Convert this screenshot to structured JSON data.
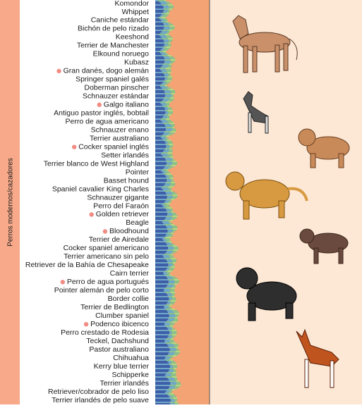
{
  "section_label": "Perros modernos/cazadores",
  "breeds": [
    {
      "name": "Komondor",
      "marked": false
    },
    {
      "name": "Whippet",
      "marked": false
    },
    {
      "name": "Caniche estándar",
      "marked": false
    },
    {
      "name": "Bichón de pelo rizado",
      "marked": false
    },
    {
      "name": "Keeshond",
      "marked": false
    },
    {
      "name": "Terrier de Manchester",
      "marked": false
    },
    {
      "name": "Elkound noruego",
      "marked": false
    },
    {
      "name": "Kubasz",
      "marked": false
    },
    {
      "name": "Gran danés, dogo alemán",
      "marked": true
    },
    {
      "name": "Springer spaniel galés",
      "marked": false
    },
    {
      "name": "Doberman pinscher",
      "marked": false
    },
    {
      "name": "Schnauzer estándar",
      "marked": false
    },
    {
      "name": "Galgo italiano",
      "marked": true
    },
    {
      "name": "Antiguo pastor inglés, bobtail",
      "marked": false
    },
    {
      "name": "Perro de agua americano",
      "marked": false
    },
    {
      "name": "Schnauzer enano",
      "marked": false
    },
    {
      "name": "Terrier australiano",
      "marked": false
    },
    {
      "name": "Cocker spaniel inglés",
      "marked": true
    },
    {
      "name": "Setter irlandés",
      "marked": false
    },
    {
      "name": "Terrier blanco de West Highland",
      "marked": false
    },
    {
      "name": "Pointer",
      "marked": false
    },
    {
      "name": "Basset hound",
      "marked": false
    },
    {
      "name": "Spaniel cavalier King Charles",
      "marked": false
    },
    {
      "name": "Schnauzer gigante",
      "marked": false
    },
    {
      "name": "Perro del Faraón",
      "marked": false
    },
    {
      "name": "Golden retriever",
      "marked": true
    },
    {
      "name": "Beagle",
      "marked": false
    },
    {
      "name": "Bloodhound",
      "marked": true
    },
    {
      "name": "Terrier de Airedale",
      "marked": false
    },
    {
      "name": "Cocker spaniel americano",
      "marked": false
    },
    {
      "name": "Terrier americano sin pelo",
      "marked": false
    },
    {
      "name": "Retriever de la Bahía de Chesapeake",
      "marked": false
    },
    {
      "name": "Cairn terrier",
      "marked": false
    },
    {
      "name": "Perro de agua portugués",
      "marked": true
    },
    {
      "name": "Pointer alemán de pelo corto",
      "marked": false
    },
    {
      "name": "Border collie",
      "marked": false
    },
    {
      "name": "Terrier de Bedlington",
      "marked": false
    },
    {
      "name": "Clumber spaniel",
      "marked": false
    },
    {
      "name": "Podenco ibicenco",
      "marked": true
    },
    {
      "name": "Perro crestado de Rodesia",
      "marked": false
    },
    {
      "name": "Teckel, Dachshund",
      "marked": false
    },
    {
      "name": "Pastor australiano",
      "marked": false
    },
    {
      "name": "Chihuahua",
      "marked": false
    },
    {
      "name": "Kerry blue terrier",
      "marked": false
    },
    {
      "name": "Schipperke",
      "marked": false
    },
    {
      "name": "Terrier irlandés",
      "marked": false
    },
    {
      "name": "Retriever/cobrador de pelo liso",
      "marked": false
    },
    {
      "name": "Terrier irlandés de pelo suave",
      "marked": false
    }
  ]
}
